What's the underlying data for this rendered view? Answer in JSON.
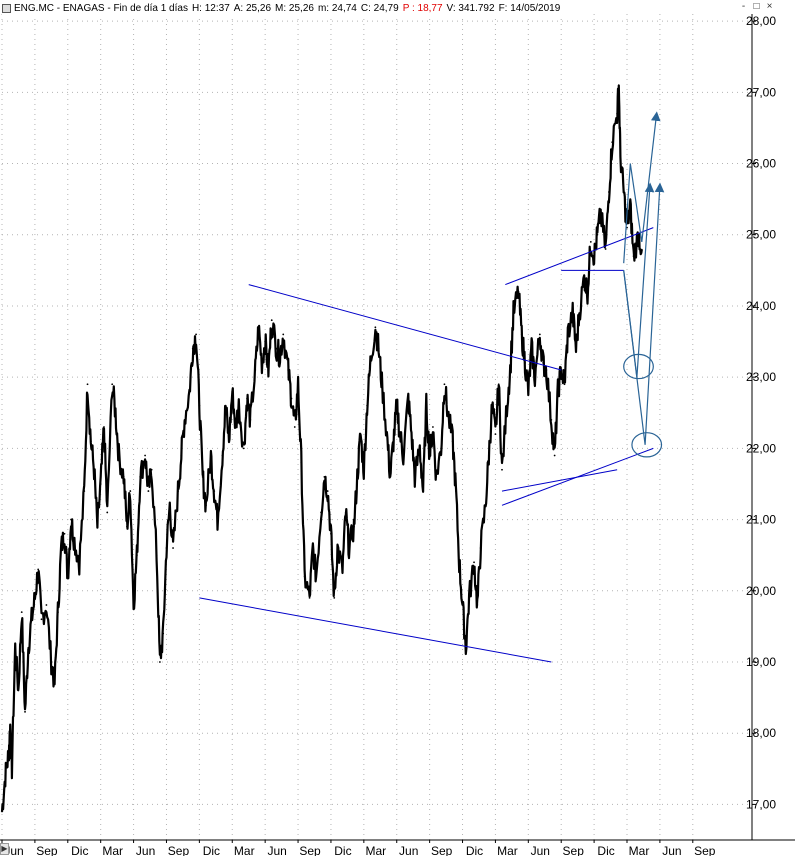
{
  "header": {
    "symbol": "ENG.MC - ENAGAS - Fin de día 1 días",
    "high": "H: 12:37",
    "open": "A: 25,26",
    "max": "M: 25,26",
    "min": "m: 24,74",
    "close": "C: 24,79",
    "p": "P : 18,77",
    "volume": "V: 341.792",
    "date": "F: 14/05/2019"
  },
  "window_buttons": [
    "-",
    "□",
    "×"
  ],
  "colors": {
    "price": "#000000",
    "trendline": "#0000c8",
    "projection": "#2a6496",
    "grid": "#b4b4b4",
    "close_value": "#e00000"
  },
  "chart_data": {
    "type": "line",
    "title": "ENG.MC - ENAGAS",
    "x_tick_labels": [
      "Jun",
      "Sep",
      "Dic",
      "Mar",
      "Jun",
      "Sep",
      "Dic",
      "Mar",
      "Jun",
      "Sep",
      "Dic",
      "Mar",
      "Jun",
      "Sep",
      "Dic",
      "Mar",
      "Jun",
      "Sep",
      "Dic",
      "Mar",
      "Jun",
      "Sep"
    ],
    "y_tick_labels": [
      "17,00",
      "18,00",
      "19,00",
      "20,00",
      "21,00",
      "22,00",
      "23,00",
      "24,00",
      "25,00",
      "26,00",
      "27,00",
      "28,00"
    ],
    "y_ticks": [
      17,
      18,
      19,
      20,
      21,
      22,
      23,
      24,
      25,
      26,
      27,
      28
    ],
    "ylim": [
      16.5,
      28.1
    ],
    "xlim": [
      0,
      22.8
    ],
    "grid": true,
    "x_unit_note": "months from first tick",
    "series": [
      {
        "values": [
          [
            0.0,
            16.9
          ],
          [
            0.1,
            17.4
          ],
          [
            0.2,
            17.7
          ],
          [
            0.25,
            18.1
          ],
          [
            0.3,
            17.5
          ],
          [
            0.4,
            19.2
          ],
          [
            0.5,
            18.6
          ],
          [
            0.6,
            19.7
          ],
          [
            0.7,
            18.3
          ],
          [
            0.8,
            19.2
          ],
          [
            0.9,
            19.6
          ],
          [
            1.0,
            19.9
          ],
          [
            1.1,
            20.3
          ],
          [
            1.2,
            19.6
          ],
          [
            1.35,
            19.8
          ],
          [
            1.5,
            19.0
          ],
          [
            1.6,
            18.7
          ],
          [
            1.7,
            19.7
          ],
          [
            1.8,
            20.6
          ],
          [
            1.9,
            20.8
          ],
          [
            2.0,
            20.2
          ],
          [
            2.1,
            21.0
          ],
          [
            2.2,
            20.7
          ],
          [
            2.35,
            20.4
          ],
          [
            2.5,
            21.4
          ],
          [
            2.6,
            22.9
          ],
          [
            2.7,
            22.1
          ],
          [
            2.8,
            21.7
          ],
          [
            2.9,
            20.9
          ],
          [
            3.0,
            21.5
          ],
          [
            3.1,
            22.3
          ],
          [
            3.2,
            21.1
          ],
          [
            3.35,
            22.9
          ],
          [
            3.45,
            22.5
          ],
          [
            3.55,
            21.9
          ],
          [
            3.7,
            21.6
          ],
          [
            3.8,
            20.9
          ],
          [
            3.9,
            21.4
          ],
          [
            4.0,
            19.8
          ],
          [
            4.1,
            20.5
          ],
          [
            4.2,
            21.6
          ],
          [
            4.35,
            21.9
          ],
          [
            4.45,
            21.4
          ],
          [
            4.55,
            21.7
          ],
          [
            4.7,
            20.5
          ],
          [
            4.8,
            19.0
          ],
          [
            4.9,
            19.4
          ],
          [
            5.0,
            20.6
          ],
          [
            5.1,
            21.2
          ],
          [
            5.2,
            20.6
          ],
          [
            5.35,
            21.4
          ],
          [
            5.45,
            21.9
          ],
          [
            5.55,
            22.4
          ],
          [
            5.7,
            22.8
          ],
          [
            5.8,
            23.4
          ],
          [
            5.9,
            23.6
          ],
          [
            6.0,
            22.6
          ],
          [
            6.1,
            21.6
          ],
          [
            6.2,
            21.2
          ],
          [
            6.35,
            21.9
          ],
          [
            6.45,
            21.4
          ],
          [
            6.55,
            21.0
          ],
          [
            6.7,
            21.9
          ],
          [
            6.8,
            22.6
          ],
          [
            6.9,
            22.1
          ],
          [
            7.0,
            22.8
          ],
          [
            7.1,
            22.3
          ],
          [
            7.2,
            22.6
          ],
          [
            7.35,
            22.0
          ],
          [
            7.45,
            22.7
          ],
          [
            7.55,
            22.4
          ],
          [
            7.7,
            23.1
          ],
          [
            7.8,
            23.7
          ],
          [
            7.9,
            23.2
          ],
          [
            8.0,
            23.5
          ],
          [
            8.1,
            23.1
          ],
          [
            8.2,
            23.8
          ],
          [
            8.35,
            23.4
          ],
          [
            8.45,
            23.3
          ],
          [
            8.55,
            23.6
          ],
          [
            8.7,
            23.1
          ],
          [
            8.8,
            22.7
          ],
          [
            8.9,
            22.3
          ],
          [
            9.0,
            22.9
          ],
          [
            9.1,
            21.8
          ],
          [
            9.2,
            20.2
          ],
          [
            9.35,
            19.9
          ],
          [
            9.45,
            20.6
          ],
          [
            9.55,
            20.2
          ],
          [
            9.7,
            21.1
          ],
          [
            9.8,
            21.6
          ],
          [
            9.9,
            21.4
          ],
          [
            10.0,
            20.8
          ],
          [
            10.1,
            19.9
          ],
          [
            10.2,
            20.6
          ],
          [
            10.35,
            20.3
          ],
          [
            10.45,
            21.1
          ],
          [
            10.55,
            20.6
          ],
          [
            10.7,
            20.9
          ],
          [
            10.8,
            21.6
          ],
          [
            10.9,
            22.2
          ],
          [
            11.0,
            21.7
          ],
          [
            11.1,
            22.6
          ],
          [
            11.2,
            23.2
          ],
          [
            11.35,
            23.7
          ],
          [
            11.45,
            23.4
          ],
          [
            11.55,
            22.9
          ],
          [
            11.7,
            22.2
          ],
          [
            11.8,
            21.6
          ],
          [
            11.9,
            22.1
          ],
          [
            12.0,
            22.6
          ],
          [
            12.1,
            22.2
          ],
          [
            12.2,
            21.9
          ],
          [
            12.35,
            22.7
          ],
          [
            12.45,
            22.2
          ],
          [
            12.55,
            21.6
          ],
          [
            12.7,
            22.0
          ],
          [
            12.8,
            21.4
          ],
          [
            12.9,
            22.6
          ],
          [
            13.0,
            21.9
          ],
          [
            13.1,
            22.3
          ],
          [
            13.2,
            21.6
          ],
          [
            13.35,
            22.0
          ],
          [
            13.45,
            22.9
          ],
          [
            13.55,
            22.5
          ],
          [
            13.7,
            22.1
          ],
          [
            13.8,
            21.4
          ],
          [
            13.9,
            20.4
          ],
          [
            14.0,
            19.8
          ],
          [
            14.1,
            19.2
          ],
          [
            14.2,
            19.9
          ],
          [
            14.35,
            20.4
          ],
          [
            14.45,
            19.8
          ],
          [
            14.55,
            20.6
          ],
          [
            14.7,
            21.2
          ],
          [
            14.8,
            21.9
          ],
          [
            14.9,
            22.6
          ],
          [
            15.0,
            22.2
          ],
          [
            15.1,
            22.9
          ],
          [
            15.2,
            21.7
          ],
          [
            15.35,
            22.6
          ],
          [
            15.45,
            23.1
          ],
          [
            15.55,
            23.9
          ],
          [
            15.7,
            24.2
          ],
          [
            15.8,
            23.6
          ],
          [
            15.9,
            23.2
          ],
          [
            16.0,
            22.8
          ],
          [
            16.1,
            23.4
          ],
          [
            16.2,
            23.0
          ],
          [
            16.35,
            23.6
          ],
          [
            16.45,
            23.2
          ],
          [
            16.55,
            23.1
          ],
          [
            16.7,
            22.4
          ],
          [
            16.8,
            21.9
          ],
          [
            16.9,
            22.8
          ],
          [
            17.0,
            23.1
          ],
          [
            17.1,
            22.9
          ],
          [
            17.2,
            23.6
          ],
          [
            17.35,
            23.9
          ],
          [
            17.45,
            23.4
          ],
          [
            17.55,
            23.9
          ],
          [
            17.7,
            24.4
          ],
          [
            17.8,
            24.2
          ],
          [
            17.9,
            24.9
          ],
          [
            18.0,
            24.7
          ],
          [
            18.1,
            25.0
          ],
          [
            18.2,
            25.3
          ],
          [
            18.35,
            24.8
          ],
          [
            18.45,
            25.6
          ],
          [
            18.55,
            26.3
          ],
          [
            18.7,
            26.7
          ],
          [
            18.75,
            27.1
          ],
          [
            18.8,
            26.1
          ],
          [
            18.9,
            25.6
          ],
          [
            19.0,
            25.1
          ],
          [
            19.1,
            25.4
          ],
          [
            19.2,
            24.7
          ],
          [
            19.35,
            25.0
          ],
          [
            19.45,
            24.79
          ]
        ]
      }
    ],
    "annotations": [
      {
        "type": "trendline",
        "from": [
          6.0,
          19.9
        ],
        "to": [
          16.7,
          19.0
        ]
      },
      {
        "type": "trendline",
        "from": [
          7.5,
          24.3
        ],
        "to": [
          17.0,
          23.1
        ]
      },
      {
        "type": "trendline",
        "from": [
          15.2,
          21.4
        ],
        "to": [
          18.7,
          21.7
        ]
      },
      {
        "type": "trendline",
        "from": [
          15.2,
          21.2
        ],
        "to": [
          19.8,
          22.0
        ]
      },
      {
        "type": "trendline",
        "from": [
          15.3,
          24.3
        ],
        "to": [
          19.8,
          25.1
        ]
      },
      {
        "type": "trendline",
        "from": [
          17.0,
          24.5
        ],
        "to": [
          18.9,
          24.5
        ]
      },
      {
        "type": "projection",
        "points": [
          [
            18.9,
            24.6
          ],
          [
            19.1,
            26.0
          ],
          [
            19.45,
            24.9
          ],
          [
            19.9,
            26.7
          ]
        ]
      },
      {
        "type": "projection",
        "points": [
          [
            18.9,
            24.5
          ],
          [
            19.3,
            23.0
          ],
          [
            19.7,
            25.7
          ]
        ]
      },
      {
        "type": "projection",
        "points": [
          [
            18.9,
            24.5
          ],
          [
            19.55,
            22.05
          ],
          [
            20.0,
            25.7
          ]
        ]
      },
      {
        "type": "ellipse",
        "center": [
          19.35,
          23.15
        ],
        "rx": 0.45,
        "ry": 0.17
      },
      {
        "type": "ellipse",
        "center": [
          19.6,
          22.05
        ],
        "rx": 0.45,
        "ry": 0.17
      }
    ]
  }
}
